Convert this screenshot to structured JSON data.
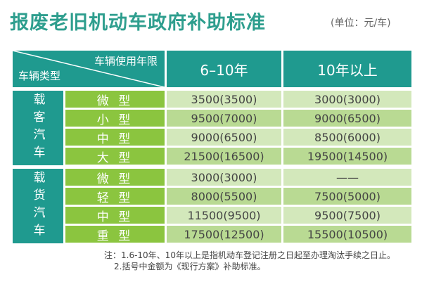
{
  "title": "报废老旧机动车政府补助标准",
  "unit": "(单位：元/车)",
  "header": {
    "corner_top": "车辆使用年限",
    "corner_bottom": "车辆类型",
    "col1": "6–10年",
    "col2": "10年以上"
  },
  "groups": [
    {
      "label": "载客汽车",
      "rows": [
        {
          "type": "微 型",
          "v1": "3500(3500)",
          "v2": "3000(3000)"
        },
        {
          "type": "小 型",
          "v1": "9500(7000)",
          "v2": "9000(6500)"
        },
        {
          "type": "中 型",
          "v1": "9000(6500)",
          "v2": "8500(6000)"
        },
        {
          "type": "大 型",
          "v1": "21500(16500)",
          "v2": "19500(14500)"
        }
      ]
    },
    {
      "label": "载货汽车",
      "rows": [
        {
          "type": "微 型",
          "v1": "3000(3000)",
          "v2": "——"
        },
        {
          "type": "轻 型",
          "v1": "8000(5500)",
          "v2": "7500(5000)"
        },
        {
          "type": "中 型",
          "v1": "11500(9500)",
          "v2": "9500(7500)"
        },
        {
          "type": "重 型",
          "v1": "17500(12500)",
          "v2": "15500(10500)"
        }
      ]
    }
  ],
  "notes": {
    "line1": "注：1.6-10年、10年以上是指机动车登记注册之日起至办理淘汰手续之日止。",
    "line2": "2.括号中金额为《现行方案》补助标准。"
  }
}
